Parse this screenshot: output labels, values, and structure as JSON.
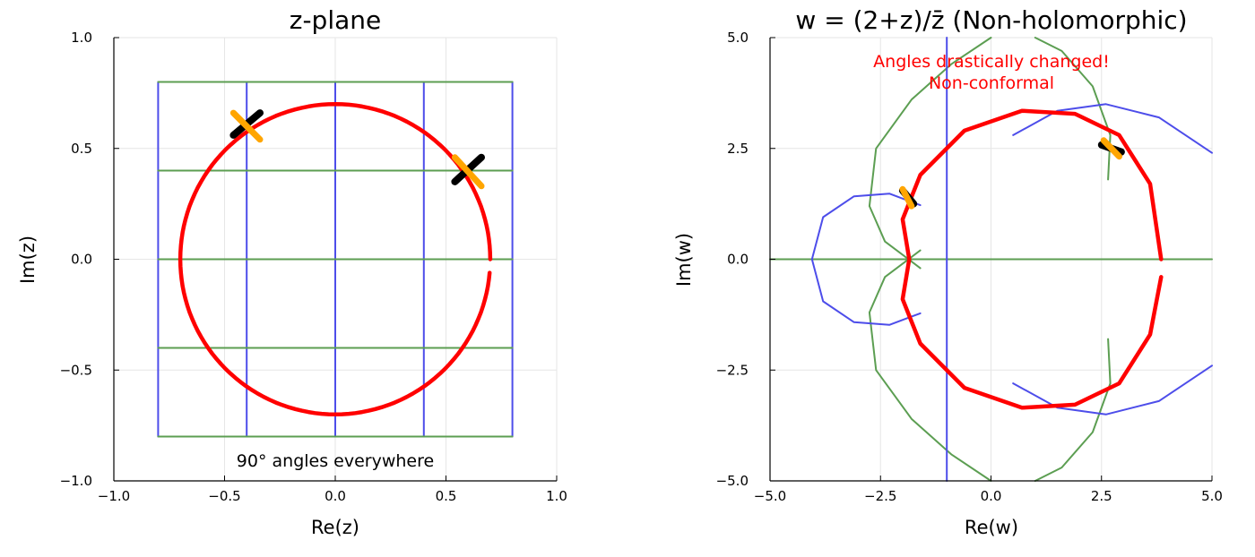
{
  "chart_data": [
    {
      "type": "line",
      "title": "z-plane",
      "xlabel": "Re(z)",
      "ylabel": "Im(z)",
      "xlim": [
        -1.0,
        1.0
      ],
      "ylim": [
        -1.0,
        1.0
      ],
      "xticks": [
        -1.0,
        -0.5,
        0.0,
        0.5,
        1.0
      ],
      "yticks": [
        -1.0,
        -0.5,
        0.0,
        0.5,
        1.0
      ],
      "xtick_labels": [
        "−1.0",
        "−0.5",
        "0.0",
        "0.5",
        "1.0"
      ],
      "ytick_labels": [
        "−1.0",
        "−0.5",
        "0.0",
        "0.5",
        "1.0"
      ],
      "grid": true,
      "annotation": {
        "text": "90° angles everywhere",
        "x": 0.0,
        "y": -0.91,
        "color": "#000000"
      },
      "colors": {
        "vertical_grid_lines": "#4d4dea",
        "horizontal_grid_lines": "#5c9e52",
        "circle": "#ff0000",
        "tangent": "#000000",
        "normal": "#ffa500"
      },
      "vertical_lines": [
        {
          "x": -0.8,
          "y": [
            -0.8,
            0.8
          ]
        },
        {
          "x": -0.4,
          "y": [
            -0.8,
            0.8
          ]
        },
        {
          "x": 0.0,
          "y": [
            -0.8,
            0.8
          ]
        },
        {
          "x": 0.4,
          "y": [
            -0.8,
            0.8
          ]
        },
        {
          "x": 0.8,
          "y": [
            -0.8,
            0.8
          ]
        }
      ],
      "horizontal_lines": [
        {
          "y": -0.8,
          "x": [
            -0.8,
            0.8
          ]
        },
        {
          "y": -0.4,
          "x": [
            -0.8,
            0.8
          ]
        },
        {
          "y": 0.0,
          "x": [
            -0.8,
            0.8
          ]
        },
        {
          "y": 0.4,
          "x": [
            -0.8,
            0.8
          ]
        },
        {
          "y": 0.8,
          "x": [
            -0.8,
            0.8
          ]
        }
      ],
      "circle": {
        "center": [
          0.0,
          0.0
        ],
        "radius": 0.7,
        "gap_angle_deg": [
          -5,
          0
        ]
      },
      "tangent_segments": [
        {
          "x": [
            -0.46,
            -0.34
          ],
          "y": [
            0.56,
            0.66
          ]
        },
        {
          "x": [
            0.54,
            0.66
          ],
          "y": [
            0.35,
            0.46
          ]
        }
      ],
      "normal_segments": [
        {
          "x": [
            -0.46,
            -0.34
          ],
          "y": [
            0.66,
            0.54
          ]
        },
        {
          "x": [
            0.54,
            0.66
          ],
          "y": [
            0.46,
            0.33
          ]
        }
      ]
    },
    {
      "type": "line",
      "title": "w = (2+z)/z̄ (Non-holomorphic)",
      "xlabel": "Re(w)",
      "ylabel": "Im(w)",
      "xlim": [
        -5.0,
        5.0
      ],
      "ylim": [
        -5.0,
        5.0
      ],
      "xticks": [
        -5.0,
        -2.5,
        0.0,
        2.5,
        5.0
      ],
      "yticks": [
        -5.0,
        -2.5,
        0.0,
        2.5,
        5.0
      ],
      "xtick_labels": [
        "−5.0",
        "−2.5",
        "0.0",
        "2.5",
        "5.0"
      ],
      "ytick_labels": [
        "−5.0",
        "−2.5",
        "0.0",
        "2.5",
        "5.0"
      ],
      "grid": true,
      "annotation": {
        "lines": [
          "Angles drastically changed!",
          "Non-conformal"
        ],
        "x": 0.0,
        "y": [
          4.45,
          3.95
        ],
        "color": "#ff0000"
      },
      "colors": {
        "blue_curves": "#4d4dea",
        "green_curves": "#5c9e52",
        "image_curve": "#ff0000",
        "tangent": "#000000",
        "normal": "#ffa500"
      },
      "blue_curves": [
        {
          "x": [
            -1.0,
            -1.0
          ],
          "y": [
            -5.0,
            5.0
          ]
        },
        {
          "x": [
            -1.6,
            -2.3,
            -3.1,
            -3.8,
            -4.05,
            -3.8,
            -3.1,
            -2.3,
            -1.6
          ],
          "y": [
            1.22,
            1.48,
            1.42,
            0.95,
            0.0,
            -0.95,
            -1.42,
            -1.48,
            -1.22
          ]
        },
        {
          "x": [
            0.5,
            1.5,
            2.6,
            3.8,
            5.0
          ],
          "y": [
            2.8,
            3.35,
            3.5,
            3.2,
            2.4
          ]
        },
        {
          "x": [
            0.5,
            1.5,
            2.6,
            3.8,
            5.0
          ],
          "y": [
            -2.8,
            -3.35,
            -3.5,
            -3.2,
            -2.4
          ]
        }
      ],
      "green_curves": [
        {
          "x": [
            0.0,
            -0.9,
            -1.8,
            -2.6,
            -2.75,
            -2.4,
            -1.6
          ],
          "y": [
            5.0,
            4.4,
            3.6,
            2.5,
            1.2,
            0.4,
            -0.2
          ]
        },
        {
          "x": [
            0.0,
            -0.9,
            -1.8,
            -2.6,
            -2.75,
            -2.4,
            -1.6
          ],
          "y": [
            -5.0,
            -4.4,
            -3.6,
            -2.5,
            -1.2,
            -0.4,
            0.2
          ]
        },
        {
          "x": [
            1.0,
            1.6,
            2.3,
            2.7,
            2.65
          ],
          "y": [
            5.0,
            4.7,
            3.9,
            2.8,
            1.8
          ]
        },
        {
          "x": [
            1.0,
            1.6,
            2.3,
            2.7,
            2.65
          ],
          "y": [
            -5.0,
            -4.7,
            -3.9,
            -2.8,
            -1.8
          ]
        },
        {
          "x": [
            -5.0,
            5.0
          ],
          "y": [
            0.0,
            0.0
          ]
        }
      ],
      "image_curve": {
        "x": [
          3.85,
          3.6,
          2.9,
          1.9,
          0.7,
          -0.6,
          -1.6,
          -2.0,
          -1.85,
          -1.85,
          -2.0,
          -1.6,
          -0.6,
          0.7,
          1.9,
          2.9,
          3.6,
          3.85
        ],
        "y": [
          0.0,
          1.7,
          2.8,
          3.28,
          3.35,
          2.9,
          1.9,
          0.9,
          0.0,
          0.0,
          -0.9,
          -1.9,
          -2.9,
          -3.35,
          -3.28,
          -2.8,
          -1.7,
          -0.4
        ]
      },
      "tangent_segments": [
        {
          "x": [
            -2.0,
            -1.75
          ],
          "y": [
            1.55,
            1.25
          ]
        },
        {
          "x": [
            2.5,
            2.95
          ],
          "y": [
            2.58,
            2.42
          ]
        }
      ],
      "normal_segments": [
        {
          "x": [
            -2.0,
            -1.8
          ],
          "y": [
            1.58,
            1.2
          ]
        },
        {
          "x": [
            2.55,
            2.9
          ],
          "y": [
            2.68,
            2.32
          ]
        }
      ]
    }
  ]
}
